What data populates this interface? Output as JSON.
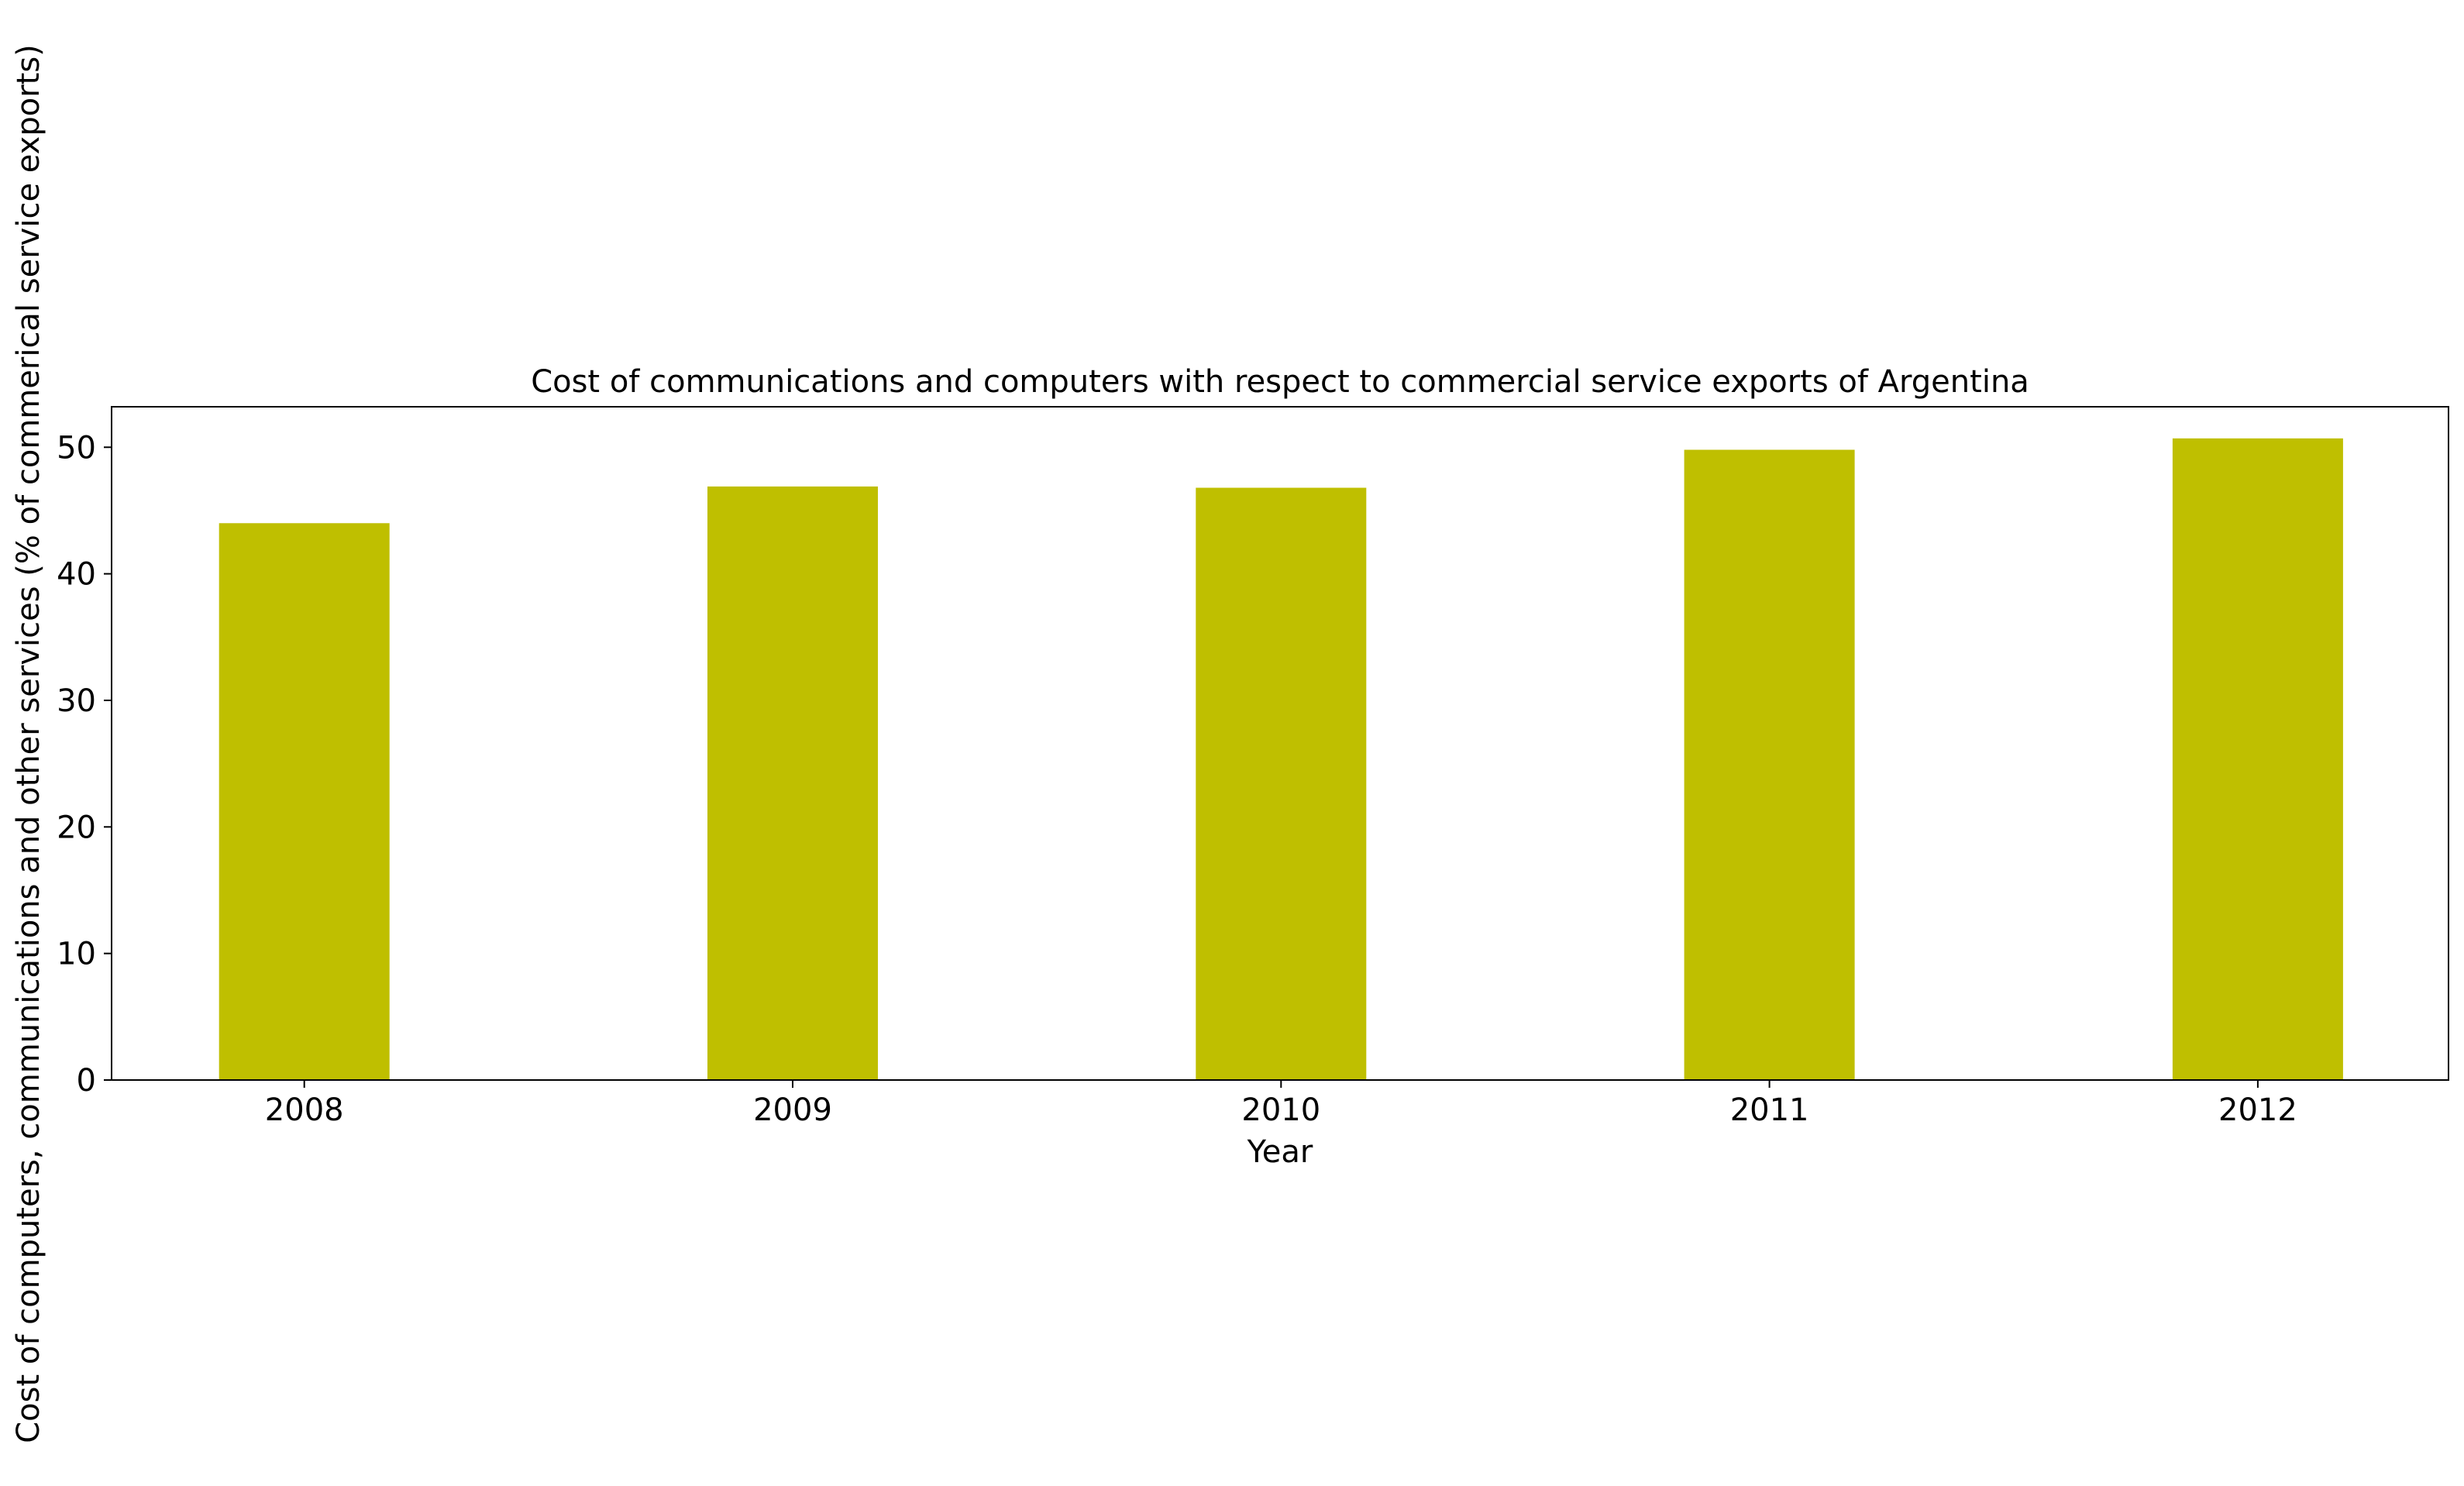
{
  "chart_data": {
    "type": "bar",
    "title": "Cost of communications and computers with respect to commercial service exports of Argentina",
    "xlabel": "Year",
    "ylabel": "Cost of computers, communications and other services (% of commerical service exports)",
    "categories": [
      "2008",
      "2009",
      "2010",
      "2011",
      "2012"
    ],
    "values": [
      44.0,
      46.9,
      46.8,
      49.8,
      50.7
    ],
    "ylim": [
      0,
      53.2
    ],
    "yticks": [
      0,
      10,
      20,
      30,
      40,
      50
    ],
    "grid": false,
    "legend": "none",
    "bar_color": "#bfbf00"
  }
}
